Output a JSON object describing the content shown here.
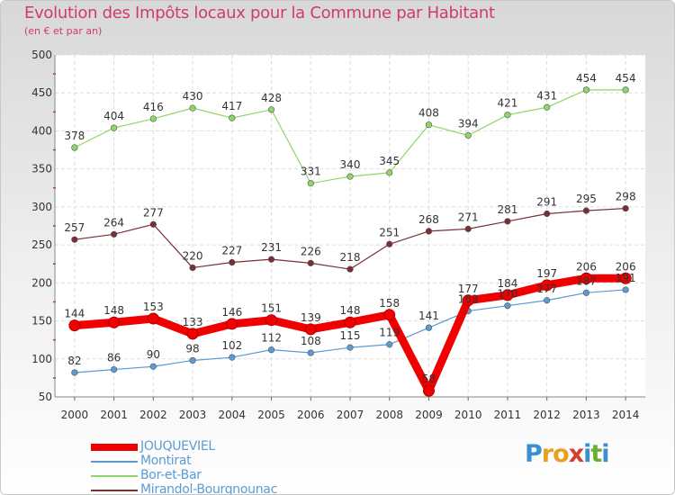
{
  "title": "Evolution des Impôts locaux pour la Commune par Habitant",
  "subtitle": "(en € et par an)",
  "logo": {
    "letters": [
      "P",
      "r",
      "o",
      "x",
      "i",
      "t",
      "i"
    ],
    "colors": [
      "#3a8fd0",
      "#e8a020",
      "#e8a020",
      "#d24030",
      "#3a8fd0",
      "#68b030",
      "#3a8fd0"
    ]
  },
  "chart_data": {
    "type": "line",
    "title": "Evolution des Impôts locaux pour la Commune par Habitant",
    "subtitle": "(en € et par an)",
    "xlabel": "",
    "ylabel": "",
    "ylim": [
      50,
      500
    ],
    "yticks": [
      50,
      100,
      150,
      200,
      250,
      300,
      350,
      400,
      450,
      500
    ],
    "grid": true,
    "legend_position": "bottom-left",
    "x": [
      "2000",
      "2001",
      "2002",
      "2003",
      "2004",
      "2005",
      "2006",
      "2007",
      "2008",
      "2009",
      "2010",
      "2011",
      "2012",
      "2013",
      "2014"
    ],
    "series": [
      {
        "name": "Bor-et-Bar",
        "color": "#8fd66a",
        "values": [
          378,
          404,
          416,
          430,
          417,
          428,
          331,
          340,
          345,
          408,
          394,
          421,
          431,
          454,
          454
        ]
      },
      {
        "name": "Mirandol-Bourgnounac",
        "color": "#7a2e36",
        "values": [
          257,
          264,
          277,
          220,
          227,
          231,
          226,
          218,
          251,
          268,
          271,
          281,
          291,
          295,
          298
        ]
      },
      {
        "name": "Montirat",
        "color": "#5b9bd5",
        "values": [
          82,
          86,
          90,
          98,
          102,
          112,
          108,
          115,
          119,
          141,
          163,
          170,
          177,
          187,
          191
        ]
      },
      {
        "name": "JOUQUEVIEL",
        "color": "#f00000",
        "values": [
          144,
          148,
          153,
          133,
          146,
          151,
          139,
          148,
          158,
          58,
          177,
          184,
          197,
          206,
          206
        ]
      }
    ],
    "legend": [
      "JOUQUEVIEL",
      "Montirat",
      "Bor-et-Bar",
      "Mirandol-Bourgnounac"
    ]
  }
}
